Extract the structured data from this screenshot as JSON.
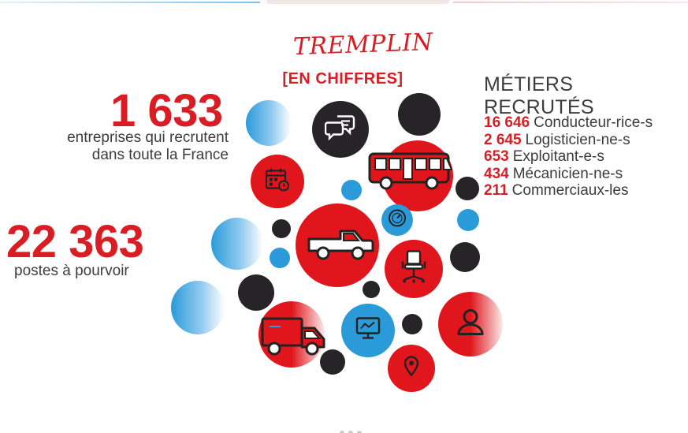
{
  "header": {
    "title_main": "TREMPLIN",
    "title_sub": "[EN CHIFFRES]"
  },
  "stats": [
    {
      "value": "1 633",
      "label": "entreprises qui recrutent dans toute la France"
    },
    {
      "value": "22 363",
      "label": "postes à pourvoir"
    }
  ],
  "metiers": {
    "title": "MÉTIERS RECRUTÉS",
    "items": [
      {
        "count": "16 646",
        "label": "Conducteur-rice-s"
      },
      {
        "count": "2 645",
        "label": "Logisticien-ne-s"
      },
      {
        "count": "653",
        "label": "Exploitant-e-s"
      },
      {
        "count": "434",
        "label": "Mécanicien-ne-s"
      },
      {
        "count": "211",
        "label": "Commerciaux-les"
      }
    ]
  },
  "colors": {
    "accent_red": "#d81e24",
    "bubble_red": "#e0161c",
    "bubble_black": "#262426",
    "bubble_blue": "#2a9bd8",
    "text": "#3c3c3c"
  },
  "icons": [
    "chat-bubbles-icon",
    "calendar-clock-icon",
    "bus-icon",
    "dashboard-gauge-icon",
    "pickup-truck-icon",
    "office-chair-icon",
    "user-icon",
    "delivery-truck-icon",
    "monitor-icon",
    "location-pin-icon"
  ]
}
